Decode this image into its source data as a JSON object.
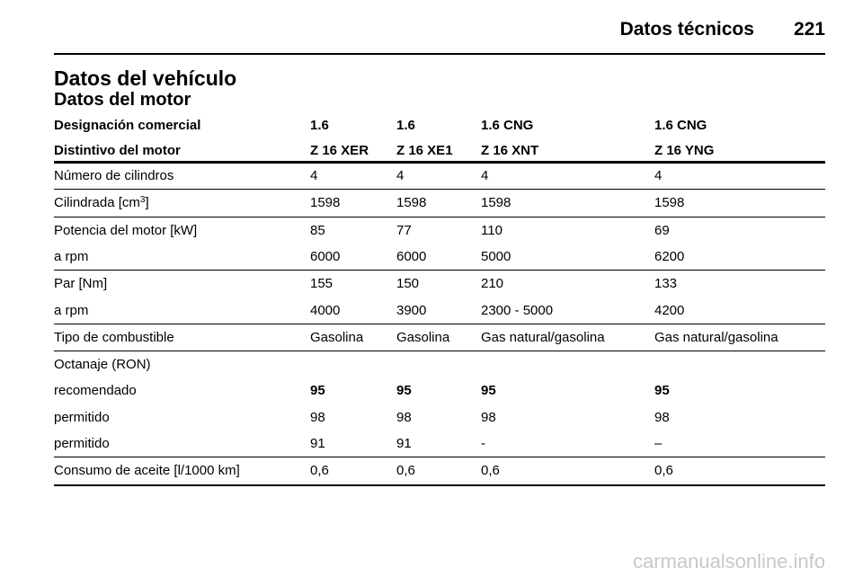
{
  "header": {
    "section": "Datos técnicos",
    "page": "221"
  },
  "title": "Datos del vehículo",
  "subtitle": "Datos del motor",
  "table": {
    "head": [
      [
        "Designación comercial",
        "1.6",
        "1.6",
        "1.6 CNG",
        "1.6 CNG"
      ],
      [
        "Distintivo del motor",
        "Z 16 XER",
        "Z 16 XE1",
        "Z 16 XNT",
        "Z 16 YNG"
      ]
    ],
    "groups": [
      [
        [
          "Número de cilindros",
          "4",
          "4",
          "4",
          "4"
        ]
      ],
      [
        [
          {
            "text": "Cilindrada [cm",
            "sup": "3",
            "after": "]"
          },
          "1598",
          "1598",
          "1598",
          "1598"
        ]
      ],
      [
        [
          "Potencia del motor [kW]",
          "85",
          "77",
          "110",
          "69"
        ],
        [
          "a rpm",
          "6000",
          "6000",
          "5000",
          "6200"
        ]
      ],
      [
        [
          "Par [Nm]",
          "155",
          "150",
          "210",
          "133"
        ],
        [
          "a rpm",
          "4000",
          "3900",
          "2300 - 5000",
          "4200"
        ]
      ],
      [
        [
          "Tipo de combustible",
          "Gasolina",
          "Gasolina",
          "Gas natural/gasolina",
          "Gas natural/gasolina"
        ]
      ],
      [
        [
          "Octanaje (RON)"
        ],
        [
          "recomendado",
          "95",
          "95",
          "95",
          "95"
        ],
        [
          "permitido",
          "98",
          "98",
          "98",
          "98"
        ],
        [
          "permitido",
          "91",
          "91",
          "-",
          "–"
        ]
      ],
      [
        [
          "Consumo de aceite [l/1000 km]",
          "0,6",
          "0,6",
          "0,6",
          "0,6"
        ]
      ]
    ]
  },
  "watermark": "carmanualsonline.info"
}
